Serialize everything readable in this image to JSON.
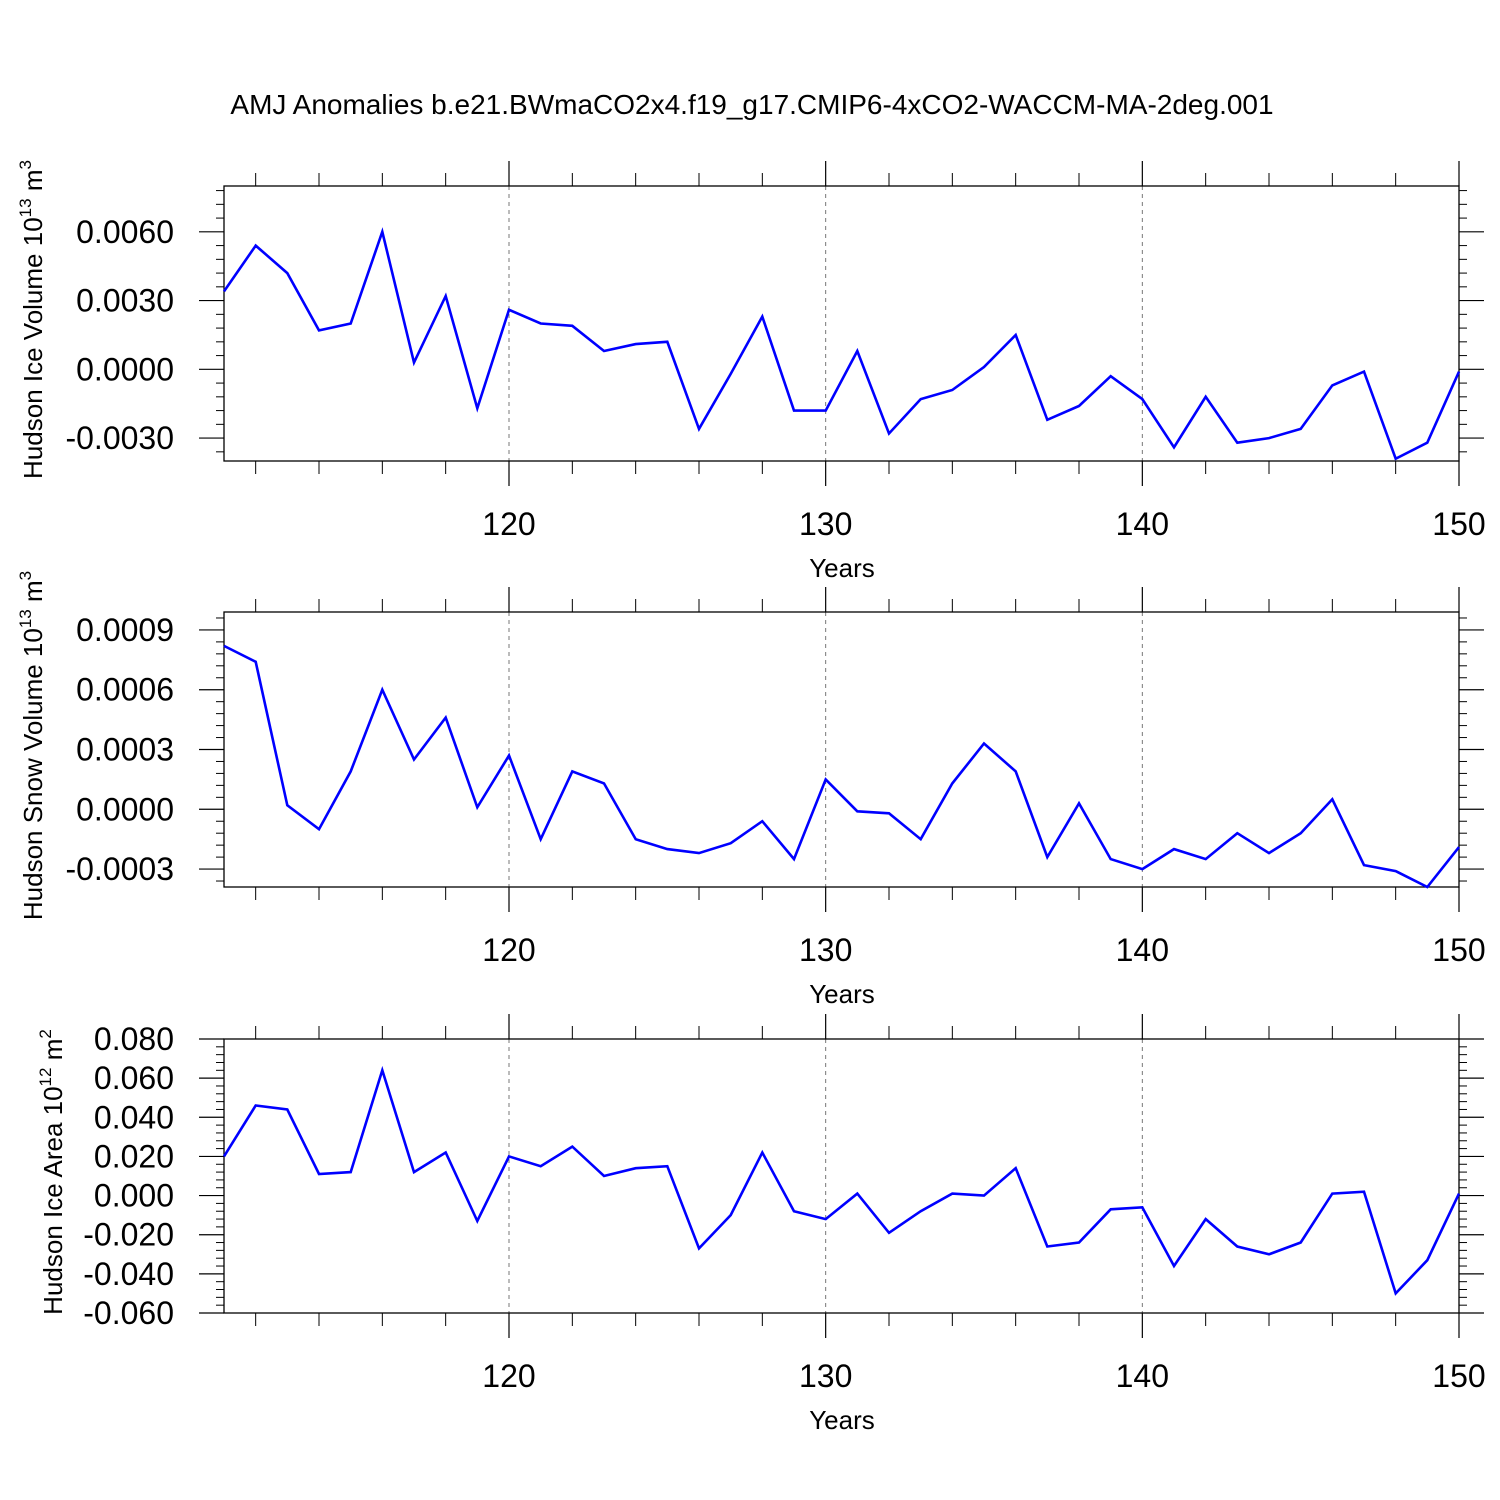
{
  "title": "AMJ Anomalies b.e21.BWmaCO2x4.f19_g17.CMIP6-4xCO2-WACCM-MA-2deg.001",
  "chart_data": [
    {
      "type": "line",
      "title": "AMJ Anomalies b.e21.BWmaCO2x4.f19_g17.CMIP6-4xCO2-WACCM-MA-2deg.001",
      "xlabel": "Years",
      "ylabel": {
        "main": "Hudson Ice Volume 10",
        "sup": "13",
        "unit": " m",
        "unit_sup": "3"
      },
      "xlim": [
        111,
        150
      ],
      "ylim": [
        -0.004,
        0.008
      ],
      "xticks": [
        120,
        130,
        140,
        150
      ],
      "xtick_labels": [
        "120",
        "130",
        "140",
        "150"
      ],
      "yticks": [
        -0.003,
        0.0,
        0.003,
        0.006
      ],
      "ytick_labels": [
        "-0.0030",
        "0.0000",
        "0.0030",
        "0.0060"
      ],
      "grid": "dashed vertical at major x ticks",
      "color": "#0000ff",
      "x": [
        111,
        112,
        113,
        114,
        115,
        116,
        117,
        118,
        119,
        120,
        121,
        122,
        123,
        124,
        125,
        126,
        127,
        128,
        129,
        130,
        131,
        132,
        133,
        134,
        135,
        136,
        137,
        138,
        139,
        140,
        141,
        142,
        143,
        144,
        145,
        146,
        147,
        148,
        149,
        150
      ],
      "values": [
        0.0034,
        0.0054,
        0.0042,
        0.0017,
        0.002,
        0.006,
        0.0003,
        0.0032,
        -0.0017,
        0.0026,
        0.002,
        0.0019,
        0.0008,
        0.0011,
        0.0012,
        -0.0026,
        -0.0002,
        0.0023,
        -0.0018,
        -0.0018,
        0.0008,
        -0.0028,
        -0.0013,
        -0.0009,
        0.0001,
        0.0015,
        -0.0022,
        -0.0016,
        -0.0003,
        -0.0013,
        -0.0034,
        -0.0012,
        -0.0032,
        -0.003,
        -0.0026,
        -0.0007,
        -0.0001,
        -0.0039,
        -0.0032,
        -0.0001
      ]
    },
    {
      "type": "line",
      "xlabel": "Years",
      "ylabel": {
        "main": "Hudson Snow Volume 10",
        "sup": "13",
        "unit": " m",
        "unit_sup": "3"
      },
      "xlim": [
        111,
        150
      ],
      "ylim": [
        -0.00039,
        0.00099
      ],
      "xticks": [
        120,
        130,
        140,
        150
      ],
      "xtick_labels": [
        "120",
        "130",
        "140",
        "150"
      ],
      "yticks": [
        -0.0003,
        0.0,
        0.0003,
        0.0006,
        0.0009
      ],
      "ytick_labels": [
        "-0.0003",
        "0.0000",
        "0.0003",
        "0.0006",
        "0.0009"
      ],
      "grid": "dashed vertical at major x ticks",
      "color": "#0000ff",
      "x": [
        111,
        112,
        113,
        114,
        115,
        116,
        117,
        118,
        119,
        120,
        121,
        122,
        123,
        124,
        125,
        126,
        127,
        128,
        129,
        130,
        131,
        132,
        133,
        134,
        135,
        136,
        137,
        138,
        139,
        140,
        141,
        142,
        143,
        144,
        145,
        146,
        147,
        148,
        149,
        150
      ],
      "values": [
        0.00082,
        0.00074,
        2e-05,
        -0.0001,
        0.00019,
        0.0006,
        0.00025,
        0.00046,
        1e-05,
        0.00027,
        -0.00015,
        0.00019,
        0.00013,
        -0.00015,
        -0.0002,
        -0.00022,
        -0.00017,
        -6e-05,
        -0.00025,
        0.00015,
        -1e-05,
        -2e-05,
        -0.00015,
        0.00013,
        0.00033,
        0.00019,
        -0.00024,
        3e-05,
        -0.00025,
        -0.0003,
        -0.0002,
        -0.00025,
        -0.00012,
        -0.00022,
        -0.00012,
        5e-05,
        -0.00028,
        -0.00031,
        -0.00039,
        -0.00019
      ]
    },
    {
      "type": "line",
      "xlabel": "Years",
      "ylabel": {
        "main": "Hudson Ice Area 10",
        "sup": "12",
        "unit": " m",
        "unit_sup": "2"
      },
      "xlim": [
        111,
        150
      ],
      "ylim": [
        -0.06,
        0.08
      ],
      "xticks": [
        120,
        130,
        140,
        150
      ],
      "xtick_labels": [
        "120",
        "130",
        "140",
        "150"
      ],
      "yticks": [
        -0.06,
        -0.04,
        -0.02,
        0.0,
        0.02,
        0.04,
        0.06,
        0.08
      ],
      "ytick_labels": [
        "-0.060",
        "-0.040",
        "-0.020",
        "0.000",
        "0.020",
        "0.040",
        "0.060",
        "0.080"
      ],
      "grid": "dashed vertical at major x ticks",
      "color": "#0000ff",
      "x": [
        111,
        112,
        113,
        114,
        115,
        116,
        117,
        118,
        119,
        120,
        121,
        122,
        123,
        124,
        125,
        126,
        127,
        128,
        129,
        130,
        131,
        132,
        133,
        134,
        135,
        136,
        137,
        138,
        139,
        140,
        141,
        142,
        143,
        144,
        145,
        146,
        147,
        148,
        149,
        150
      ],
      "values": [
        0.02,
        0.046,
        0.044,
        0.011,
        0.012,
        0.064,
        0.012,
        0.022,
        -0.013,
        0.02,
        0.015,
        0.025,
        0.01,
        0.014,
        0.015,
        -0.027,
        -0.01,
        0.022,
        -0.008,
        -0.012,
        0.001,
        -0.019,
        -0.008,
        0.001,
        0.0,
        0.014,
        -0.026,
        -0.024,
        -0.007,
        -0.006,
        -0.036,
        -0.012,
        -0.026,
        -0.03,
        -0.024,
        0.001,
        0.002,
        -0.05,
        -0.033,
        0.001
      ]
    }
  ]
}
